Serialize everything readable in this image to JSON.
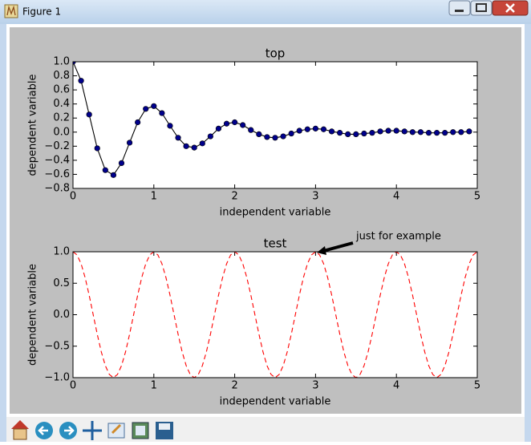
{
  "window": {
    "title": "Figure 1"
  },
  "chart_data": [
    {
      "type": "line",
      "title": "top",
      "xlabel": "independent variable",
      "ylabel": "dependent variable",
      "x": [
        0,
        0.1,
        0.2,
        0.3,
        0.4,
        0.5,
        0.6,
        0.7,
        0.8,
        0.9,
        1.0,
        1.1,
        1.2,
        1.3,
        1.4,
        1.5,
        1.6,
        1.7,
        1.8,
        1.9,
        2.0,
        2.1,
        2.2,
        2.3,
        2.4,
        2.5,
        2.6,
        2.7,
        2.8,
        2.9,
        3.0,
        3.1,
        3.2,
        3.3,
        3.4,
        3.5,
        3.6,
        3.7,
        3.8,
        3.9,
        4.0,
        4.1,
        4.2,
        4.3,
        4.4,
        4.5,
        4.6,
        4.7,
        4.8,
        4.9
      ],
      "series": [
        {
          "color": "#000000",
          "marker": "o",
          "marker_color": "#00008b",
          "linestyle": "solid",
          "values": [
            1.0,
            0.73,
            0.25,
            -0.23,
            -0.54,
            -0.61,
            -0.44,
            -0.15,
            0.14,
            0.33,
            0.37,
            0.27,
            0.09,
            -0.08,
            -0.2,
            -0.22,
            -0.16,
            -0.06,
            0.05,
            0.12,
            0.14,
            0.1,
            0.03,
            -0.03,
            -0.07,
            -0.08,
            -0.06,
            -0.02,
            0.02,
            0.04,
            0.05,
            0.04,
            0.01,
            -0.01,
            -0.03,
            -0.03,
            -0.02,
            -0.01,
            0.01,
            0.02,
            0.02,
            0.01,
            0.0,
            0.0,
            -0.01,
            -0.01,
            -0.01,
            0.0,
            0.0,
            0.01
          ]
        }
      ],
      "xlim": [
        0,
        5
      ],
      "xticks": [
        0,
        1,
        2,
        3,
        4,
        5
      ],
      "ylim": [
        -0.8,
        1.0
      ],
      "yticks": [
        {
          "value": -0.8,
          "label": "−0.8"
        },
        {
          "value": -0.6,
          "label": "−0.6"
        },
        {
          "value": -0.4,
          "label": "−0.4"
        },
        {
          "value": -0.2,
          "label": "−0.2"
        },
        {
          "value": 0,
          "label": "0.0"
        },
        0.2,
        0.4,
        0.6,
        0.8,
        {
          "value": 1,
          "label": "1.0"
        }
      ],
      "grid": false
    },
    {
      "type": "line",
      "title": "test",
      "xlabel": "independent variable",
      "ylabel": "dependent variable",
      "annotation": "just for example",
      "x": [
        0,
        0.05,
        0.1,
        0.15,
        0.2,
        0.25,
        0.3,
        0.35,
        0.4,
        0.45,
        0.5,
        0.55,
        0.6,
        0.65,
        0.7,
        0.75,
        0.8,
        0.85,
        0.9,
        0.95,
        1.0,
        1.05,
        1.1,
        1.15,
        1.2,
        1.25,
        1.3,
        1.35,
        1.4,
        1.45,
        1.5,
        1.55,
        1.6,
        1.65,
        1.7,
        1.75,
        1.8,
        1.85,
        1.9,
        1.95,
        2.0,
        2.05,
        2.1,
        2.15,
        2.2,
        2.25,
        2.3,
        2.35,
        2.4,
        2.45,
        2.5,
        2.55,
        2.6,
        2.65,
        2.7,
        2.75,
        2.8,
        2.85,
        2.9,
        2.95,
        3.0,
        3.05,
        3.1,
        3.15,
        3.2,
        3.25,
        3.3,
        3.35,
        3.4,
        3.45,
        3.5,
        3.55,
        3.6,
        3.65,
        3.7,
        3.75,
        3.8,
        3.85,
        3.9,
        3.95,
        4.0,
        4.05,
        4.1,
        4.15,
        4.2,
        4.25,
        4.3,
        4.35,
        4.4,
        4.45,
        4.5,
        4.55,
        4.6,
        4.65,
        4.7,
        4.75,
        4.8,
        4.85,
        4.9,
        4.95,
        5.0
      ],
      "series": [
        {
          "color": "#ff0000",
          "linestyle": "dashed",
          "values": [
            1,
            0.95,
            0.81,
            0.59,
            0.31,
            0,
            -0.31,
            -0.59,
            -0.81,
            -0.95,
            -1,
            -0.95,
            -0.81,
            -0.59,
            -0.31,
            0,
            0.31,
            0.59,
            0.81,
            0.95,
            1,
            0.95,
            0.81,
            0.59,
            0.31,
            0,
            -0.31,
            -0.59,
            -0.81,
            -0.95,
            -1,
            -0.95,
            -0.81,
            -0.59,
            -0.31,
            0,
            0.31,
            0.59,
            0.81,
            0.95,
            1,
            0.95,
            0.81,
            0.59,
            0.31,
            0,
            -0.31,
            -0.59,
            -0.81,
            -0.95,
            -1,
            -0.95,
            -0.81,
            -0.59,
            -0.31,
            0,
            0.31,
            0.59,
            0.81,
            0.95,
            1,
            0.95,
            0.81,
            0.59,
            0.31,
            0,
            -0.31,
            -0.59,
            -0.81,
            -0.95,
            -1,
            -0.95,
            -0.81,
            -0.59,
            -0.31,
            0,
            0.31,
            0.59,
            0.81,
            0.95,
            1,
            0.95,
            0.81,
            0.59,
            0.31,
            0,
            -0.31,
            -0.59,
            -0.81,
            -0.95,
            -1,
            -0.95,
            -0.81,
            -0.59,
            -0.31,
            0,
            0.31,
            0.59,
            0.81,
            0.95,
            1
          ]
        }
      ],
      "xlim": [
        0,
        5
      ],
      "xticks": [
        0,
        1,
        2,
        3,
        4,
        5
      ],
      "ylim": [
        -1,
        1
      ],
      "yticks": [
        {
          "value": -1,
          "label": "−1.0"
        },
        {
          "value": -0.5,
          "label": "−0.5"
        },
        {
          "value": 0,
          "label": "0.0"
        },
        0.5,
        {
          "value": 1,
          "label": "1.0"
        }
      ],
      "grid": false
    }
  ]
}
